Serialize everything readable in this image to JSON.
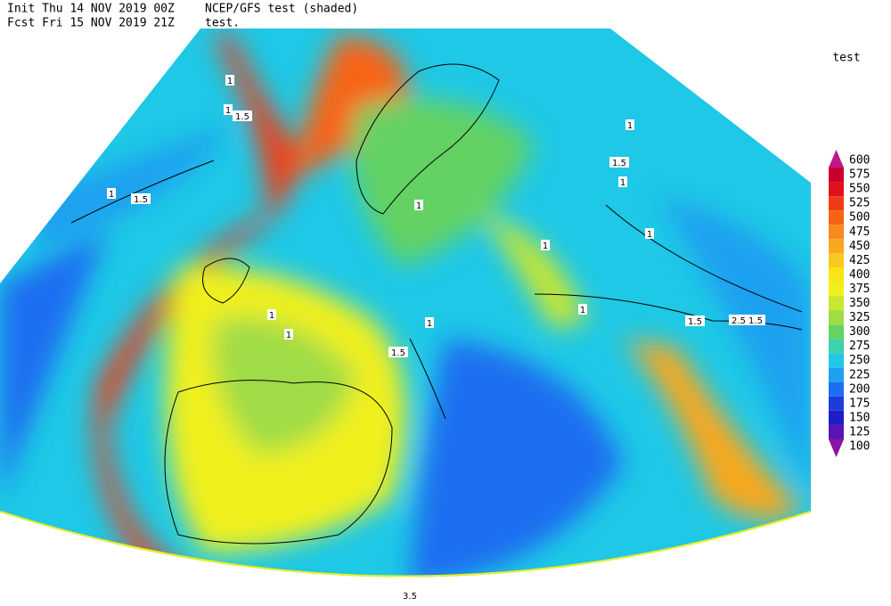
{
  "header": {
    "init": "Init  Thu 14 NOV 2019 00Z",
    "fcst": "Fcst Fri 15 NOV 2019 21Z",
    "model": "NCEP/GFS test (shaded)",
    "subtitle": "test."
  },
  "legend": {
    "title": "test",
    "levels": [
      {
        "value": 600,
        "color": "#c0168a"
      },
      {
        "value": 575,
        "color": "#c8002e"
      },
      {
        "value": 550,
        "color": "#e2101c"
      },
      {
        "value": 525,
        "color": "#f03c14"
      },
      {
        "value": 500,
        "color": "#f86414"
      },
      {
        "value": 475,
        "color": "#f88a1e"
      },
      {
        "value": 450,
        "color": "#f8a81e"
      },
      {
        "value": 425,
        "color": "#f8c81e"
      },
      {
        "value": 400,
        "color": "#f8e614"
      },
      {
        "value": 375,
        "color": "#f0f01e"
      },
      {
        "value": 350,
        "color": "#c8e632"
      },
      {
        "value": 325,
        "color": "#a0dc46"
      },
      {
        "value": 300,
        "color": "#64d264"
      },
      {
        "value": 275,
        "color": "#3cd2aa"
      },
      {
        "value": 250,
        "color": "#1ec8e6"
      },
      {
        "value": 225,
        "color": "#1ea0f0"
      },
      {
        "value": 200,
        "color": "#1e6ef0"
      },
      {
        "value": 175,
        "color": "#1e3cdc"
      },
      {
        "value": 150,
        "color": "#1e1ec8"
      },
      {
        "value": 125,
        "color": "#5a14b4"
      },
      {
        "value": 100,
        "color": "#8c14a0"
      }
    ]
  },
  "contour_labels": [
    "1",
    "1.5",
    "1",
    "1.5",
    "1",
    "1.5",
    "1",
    "1",
    "1",
    "1.5",
    "1",
    "1",
    "1",
    "1.5",
    "2.5",
    "1.5",
    "1",
    "1",
    "1",
    "3.5"
  ]
}
